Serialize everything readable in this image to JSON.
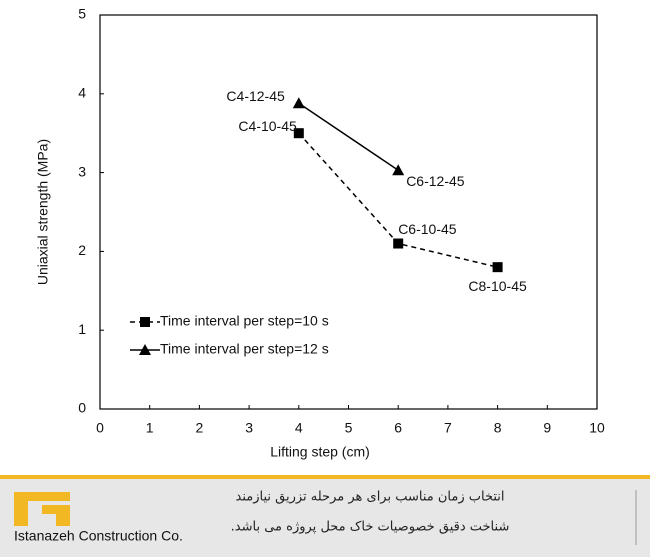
{
  "chart_data": {
    "type": "line",
    "xlabel": "Lifting step (cm)",
    "ylabel": "Uniaxial strength (MPa)",
    "xlim": [
      0,
      10
    ],
    "xticks": [
      0,
      1,
      2,
      3,
      4,
      5,
      6,
      7,
      8,
      9,
      10
    ],
    "ylim": [
      0,
      5
    ],
    "yticks": [
      0,
      1,
      2,
      3,
      4,
      5
    ],
    "legend": "lower left",
    "series": [
      {
        "name": "Time interval per step=10 s",
        "color": "#000000",
        "marker": "square",
        "linestyle": "dashed",
        "x": [
          4,
          6,
          8
        ],
        "values": [
          3.5,
          2.1,
          1.8
        ],
        "labels": [
          "C4-10-45",
          "C6-10-45",
          "C8-10-45"
        ]
      },
      {
        "name": "Time interval per step=12 s",
        "color": "#000000",
        "marker": "triangle",
        "linestyle": "solid",
        "x": [
          4,
          6
        ],
        "values": [
          3.88,
          3.03
        ],
        "labels": [
          "C4-12-45",
          "C6-12-45"
        ]
      }
    ]
  },
  "footer": {
    "logo_text": "Istanazeh Construction Co.",
    "lines": [
      "انتخاب زمان مناسب برای هر مرحله تزریق نیازمند",
      "شناخت دقیق خصوصیات خاک محل پروژه می باشد."
    ]
  }
}
